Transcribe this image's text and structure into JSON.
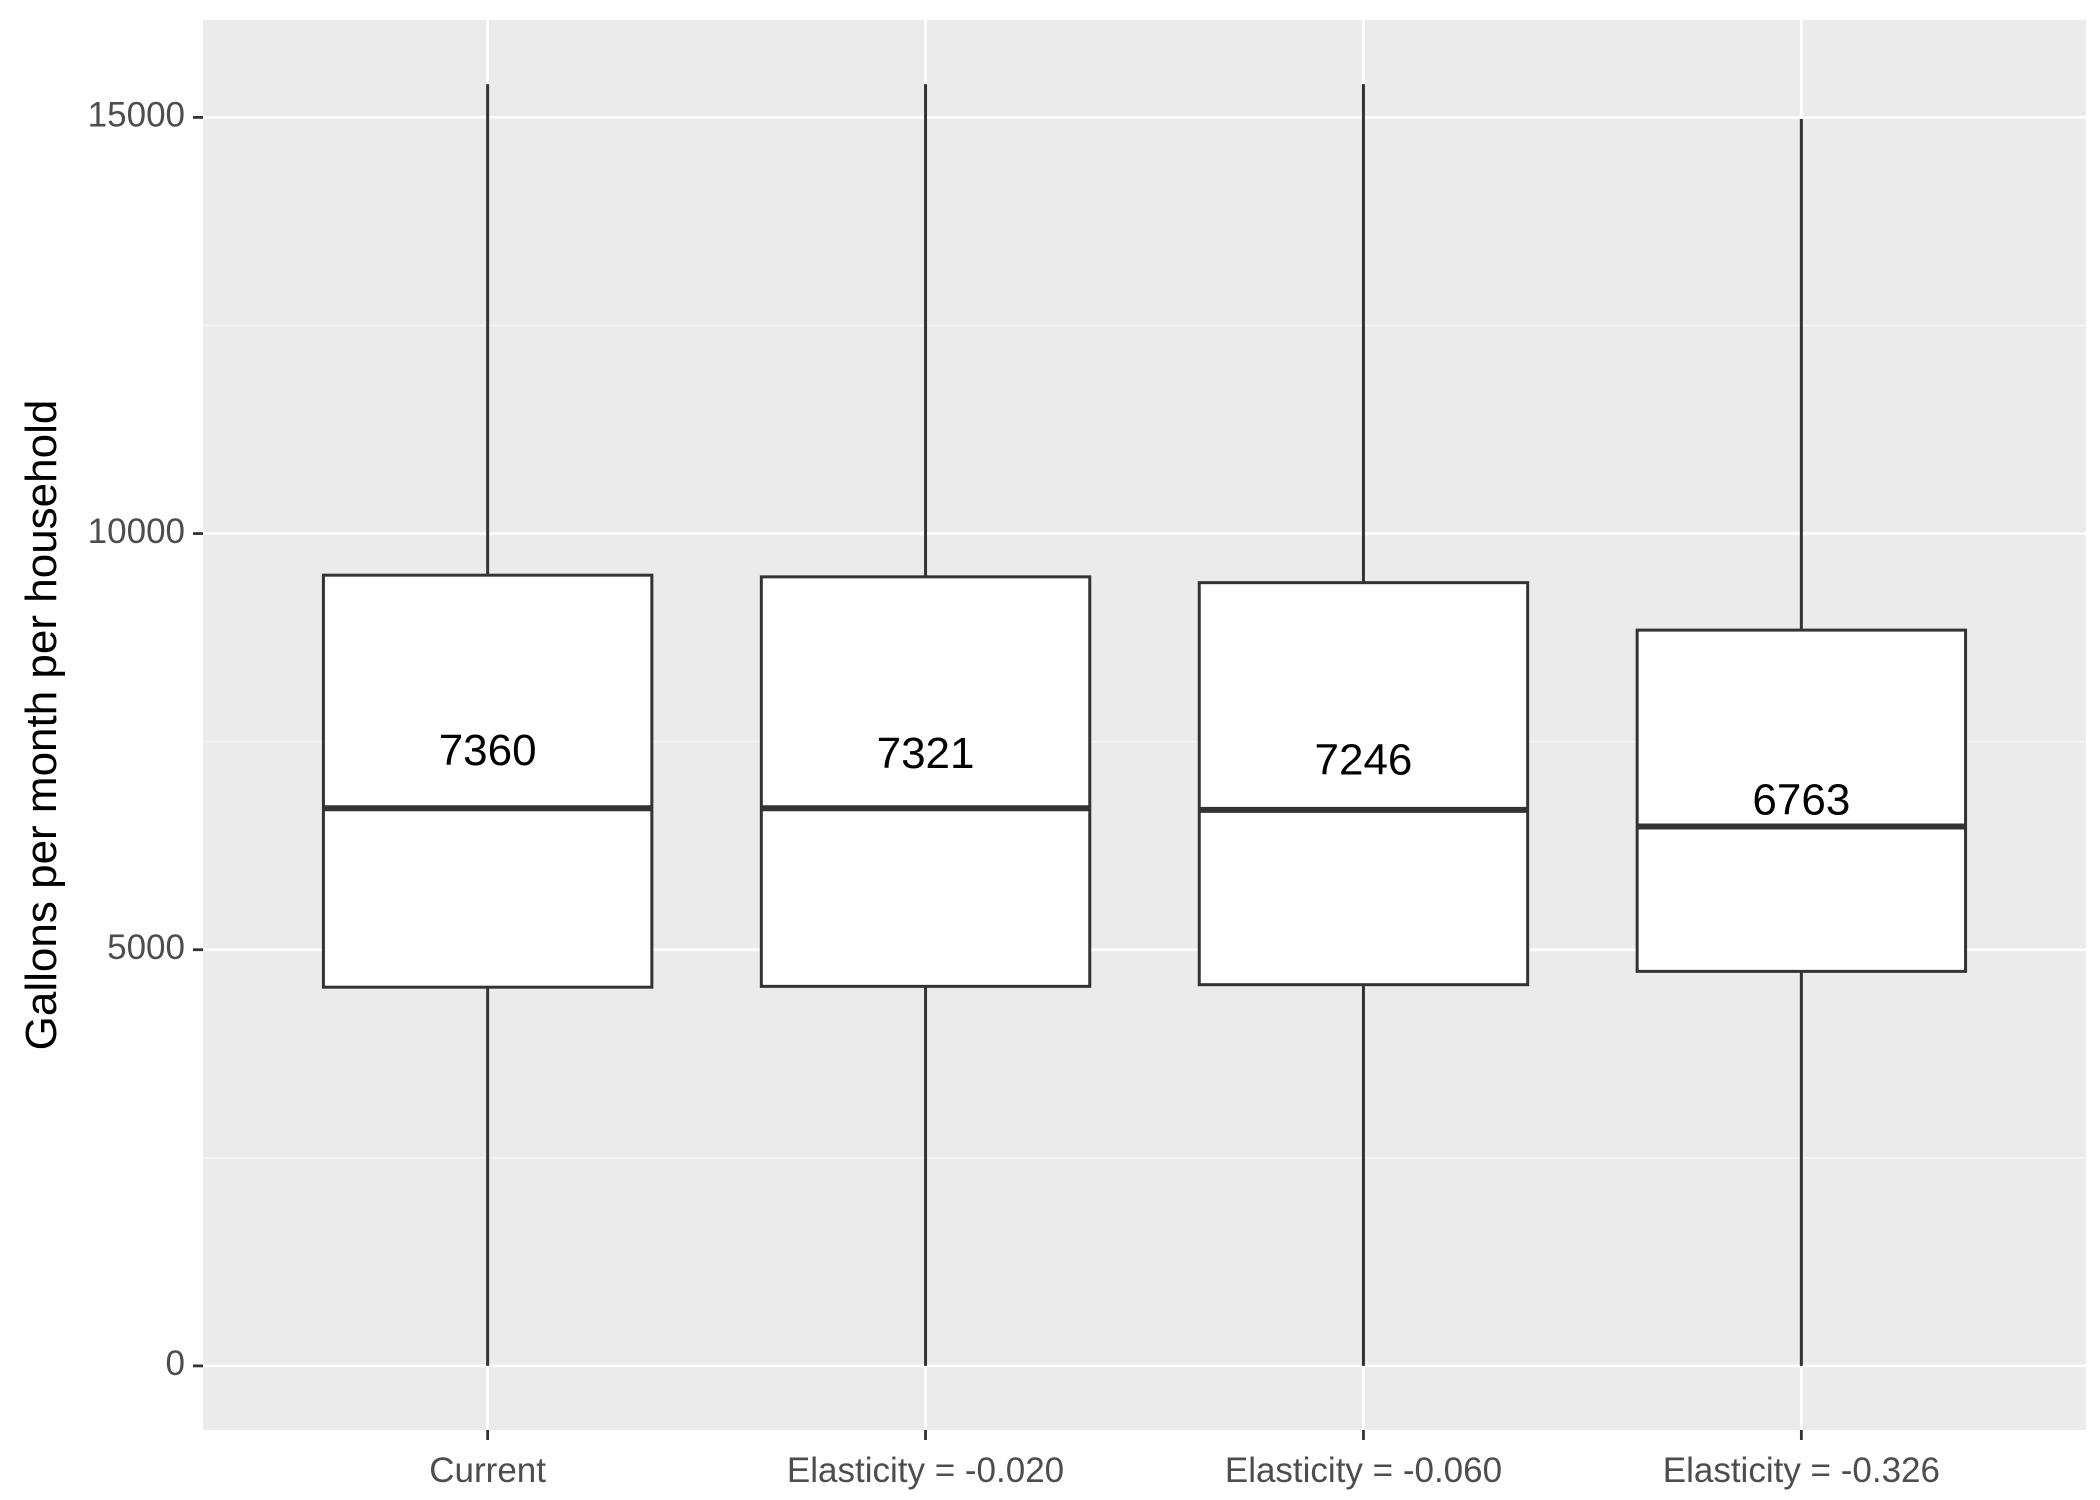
{
  "chart_data": {
    "type": "boxplot",
    "title": "",
    "xlabel": "",
    "ylabel": "Gallons per month per household",
    "categories": [
      "Current",
      "Elasticity = -0.020",
      "Elasticity = -0.060",
      "Elasticity = -0.326"
    ],
    "boxes": [
      {
        "category": "Current",
        "whisker_low": 0,
        "q1": 4550,
        "median": 6700,
        "q3": 9500,
        "whisker_high": 15400,
        "label": "7360",
        "label_value": 7360
      },
      {
        "category": "Elasticity = -0.020",
        "whisker_low": 0,
        "q1": 4560,
        "median": 6700,
        "q3": 9480,
        "whisker_high": 15400,
        "label": "7321",
        "label_value": 7321
      },
      {
        "category": "Elasticity = -0.060",
        "whisker_low": 0,
        "q1": 4580,
        "median": 6680,
        "q3": 9410,
        "whisker_high": 15400,
        "label": "7246",
        "label_value": 7246
      },
      {
        "category": "Elasticity = -0.326",
        "whisker_low": 0,
        "q1": 4740,
        "median": 6480,
        "q3": 8840,
        "whisker_high": 14980,
        "label": "6763",
        "label_value": 6763
      }
    ],
    "y_ticks": [
      0,
      5000,
      10000,
      15000
    ],
    "y_tick_labels": [
      "0",
      "5000",
      "10000",
      "15000"
    ],
    "ylim": [
      -770,
      16170
    ],
    "grid": true,
    "colors": {
      "panel_background": "#ebebeb",
      "grid_major": "#ffffff",
      "grid_minor": "#f5f5f5",
      "box_fill": "#ffffff",
      "box_stroke": "#333333",
      "tick_color": "#333333"
    }
  }
}
